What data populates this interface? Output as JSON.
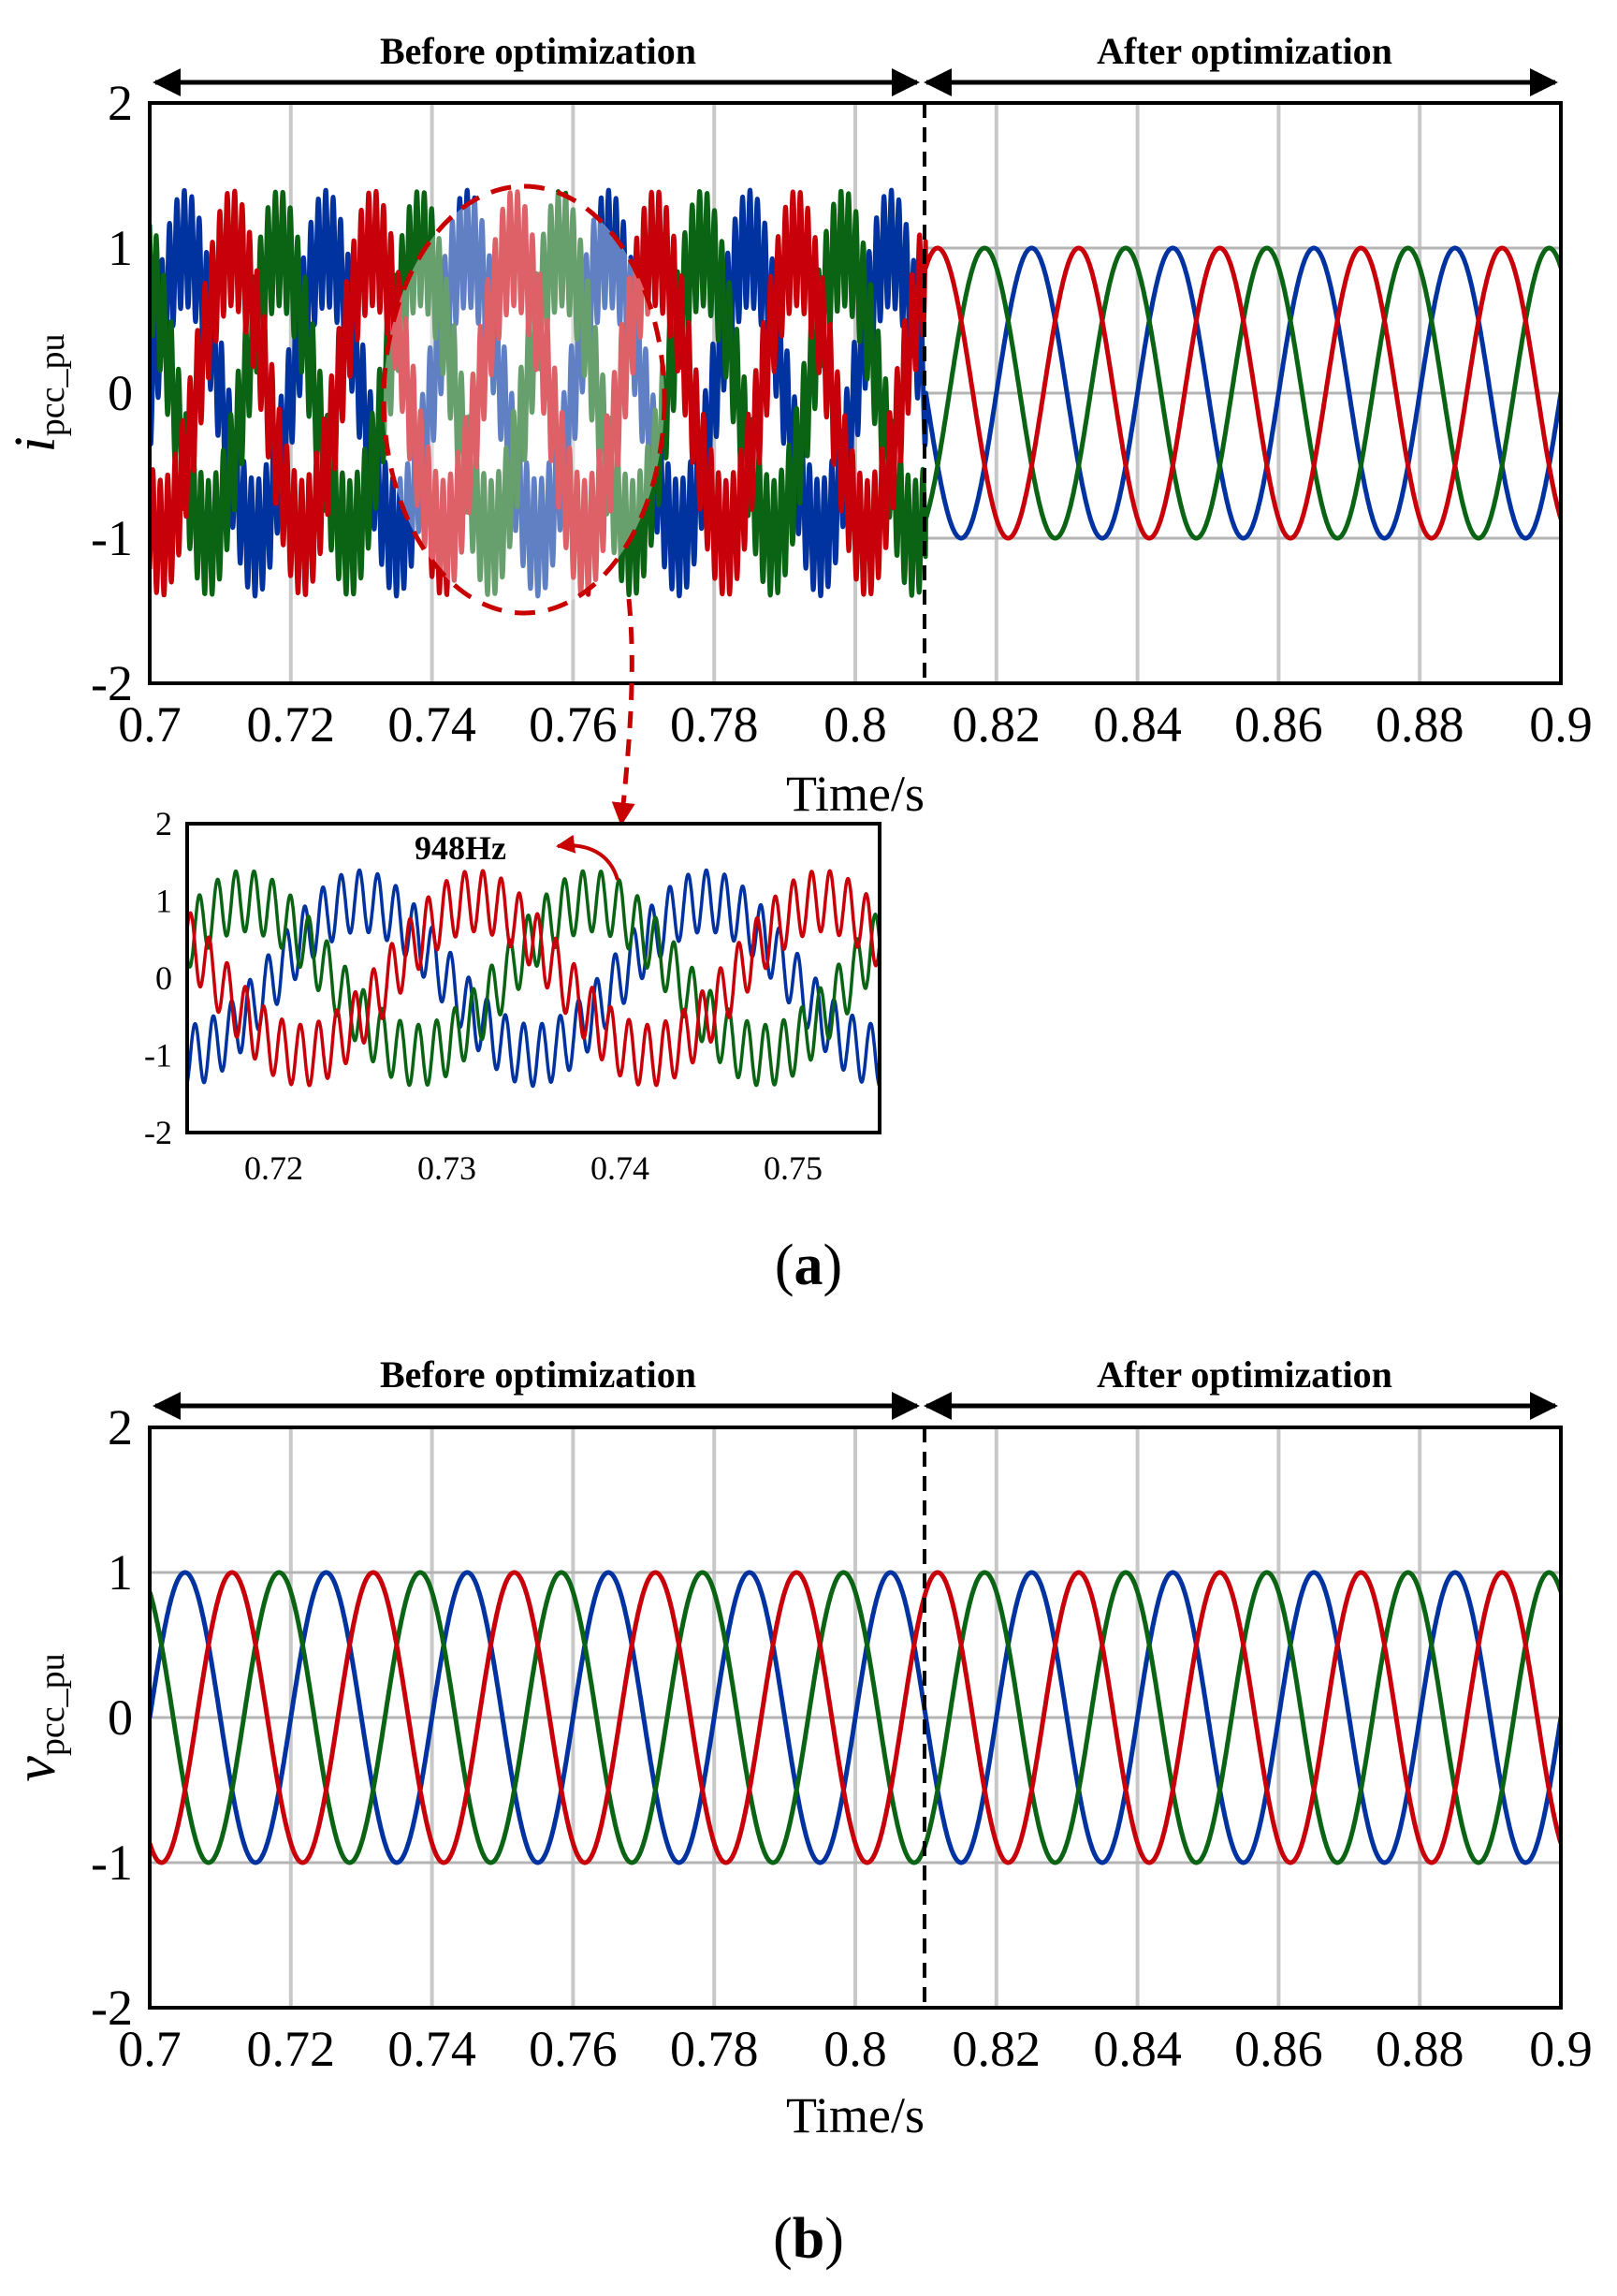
{
  "colors": {
    "phase_a": "#0032a0",
    "phase_b": "#c8000a",
    "phase_c": "#0a6414",
    "highlight": "#c80000"
  },
  "panel_a": {
    "label_open": "(",
    "label_letter": "a",
    "label_close": ")",
    "ylabel_main": "i",
    "ylabel_sub": "pcc_pu",
    "phase_before": "Before optimization",
    "phase_after": "After optimization"
  },
  "panel_b": {
    "label_open": "(",
    "label_letter": "b",
    "label_close": ")",
    "ylabel_main": "v",
    "ylabel_sub": "pcc_pu",
    "phase_before": "Before optimization",
    "phase_after": "After optimization"
  },
  "inset": {
    "annotation": "948Hz"
  },
  "chart_data": [
    {
      "type": "line",
      "panel": "a",
      "title": "",
      "xlabel": "Time/s",
      "ylabel": "ipcc_pu",
      "xlim": [
        0.7,
        0.9
      ],
      "ylim": [
        -2,
        2
      ],
      "xticks": [
        "0.7",
        "0.72",
        "0.74",
        "0.76",
        "0.78",
        "0.8",
        "0.82",
        "0.84",
        "0.86",
        "0.88",
        "0.9"
      ],
      "yticks": [
        "2",
        "1",
        "0",
        "-1",
        "-2"
      ],
      "grid": true,
      "switch_time": 0.81,
      "fundamental_hz": 50,
      "oscillation_hz": 948,
      "amplitude_after": 1.0,
      "peak_before": 1.4,
      "series": [
        {
          "phase_deg": 0,
          "color": "phase_a"
        },
        {
          "phase_deg": -120,
          "color": "phase_b"
        },
        {
          "phase_deg": 120,
          "color": "phase_c"
        }
      ]
    },
    {
      "type": "line",
      "panel": "a-inset",
      "xlim": [
        0.715,
        0.755
      ],
      "ylim": [
        -2,
        2
      ],
      "xticks": [
        "0.72",
        "0.73",
        "0.74",
        "0.75"
      ],
      "yticks": [
        "2",
        "1",
        "0",
        "-1",
        "-2"
      ],
      "annotation": "948Hz",
      "fundamental_hz": 50,
      "oscillation_hz": 948,
      "amplitude_fundamental": 1.0,
      "amplitude_oscillation": 0.4,
      "series": [
        {
          "phase_deg": 0,
          "color": "phase_a"
        },
        {
          "phase_deg": -120,
          "color": "phase_b"
        },
        {
          "phase_deg": 120,
          "color": "phase_c"
        }
      ]
    },
    {
      "type": "line",
      "panel": "b",
      "title": "",
      "xlabel": "Time/s",
      "ylabel": "vpcc_pu",
      "xlim": [
        0.7,
        0.9
      ],
      "ylim": [
        -2,
        2
      ],
      "xticks": [
        "0.7",
        "0.72",
        "0.74",
        "0.76",
        "0.78",
        "0.8",
        "0.82",
        "0.84",
        "0.86",
        "0.88",
        "0.9"
      ],
      "yticks": [
        "2",
        "1",
        "0",
        "-1",
        "-2"
      ],
      "grid": true,
      "switch_time": 0.81,
      "fundamental_hz": 50,
      "amplitude": 1.0,
      "series": [
        {
          "phase_deg": 0,
          "color": "phase_a"
        },
        {
          "phase_deg": -120,
          "color": "phase_b"
        },
        {
          "phase_deg": 120,
          "color": "phase_c"
        }
      ]
    }
  ]
}
